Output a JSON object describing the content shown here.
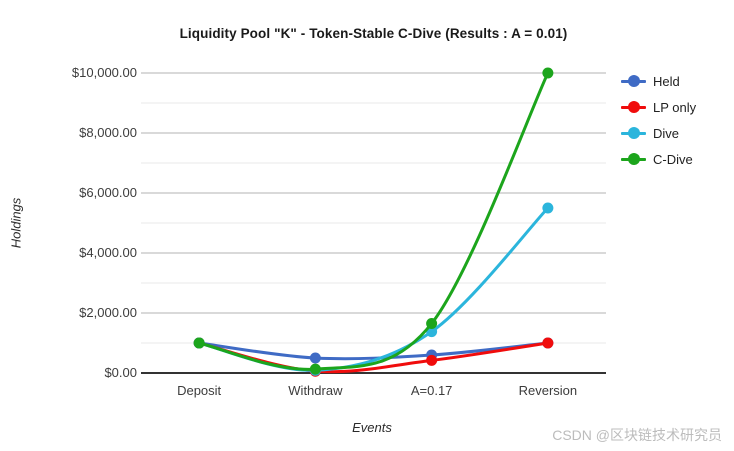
{
  "chart_data": {
    "type": "line",
    "title": "Liquidity Pool \"K\" - Token-Stable C-Dive (Results : A = 0.01)",
    "xlabel": "Events",
    "ylabel": "Holdings",
    "categories": [
      "Deposit",
      "Withdraw",
      "A=0.17",
      "Reversion"
    ],
    "series": [
      {
        "name": "Held",
        "color": "#3f6bc5",
        "values": [
          1000,
          500,
          600,
          1000
        ]
      },
      {
        "name": "LP only",
        "color": "#f00c0c",
        "values": [
          1000,
          60,
          420,
          1000
        ]
      },
      {
        "name": "Dive",
        "color": "#2bb5dc",
        "values": [
          1000,
          90,
          1380,
          5500
        ]
      },
      {
        "name": "C-Dive",
        "color": "#1ca51c",
        "values": [
          1000,
          130,
          1650,
          10000
        ]
      }
    ],
    "ylim": [
      0,
      10000
    ],
    "y_major_step": 2000,
    "y_minor_step": 1000,
    "y_tick_labels": [
      "$0.00",
      "$2,000.00",
      "$4,000.00",
      "$6,000.00",
      "$8,000.00",
      "$10,000.00"
    ],
    "legend_position": "right",
    "grid": true,
    "smooth_lines": true,
    "colors": {
      "major_gridline": "#b3b3b3",
      "minor_gridline": "#e8e8e8",
      "axis_line": "#333333",
      "tick_text": "#3c3c3c"
    }
  },
  "watermark": {
    "text": "CSDN @区块链技术研究员"
  }
}
